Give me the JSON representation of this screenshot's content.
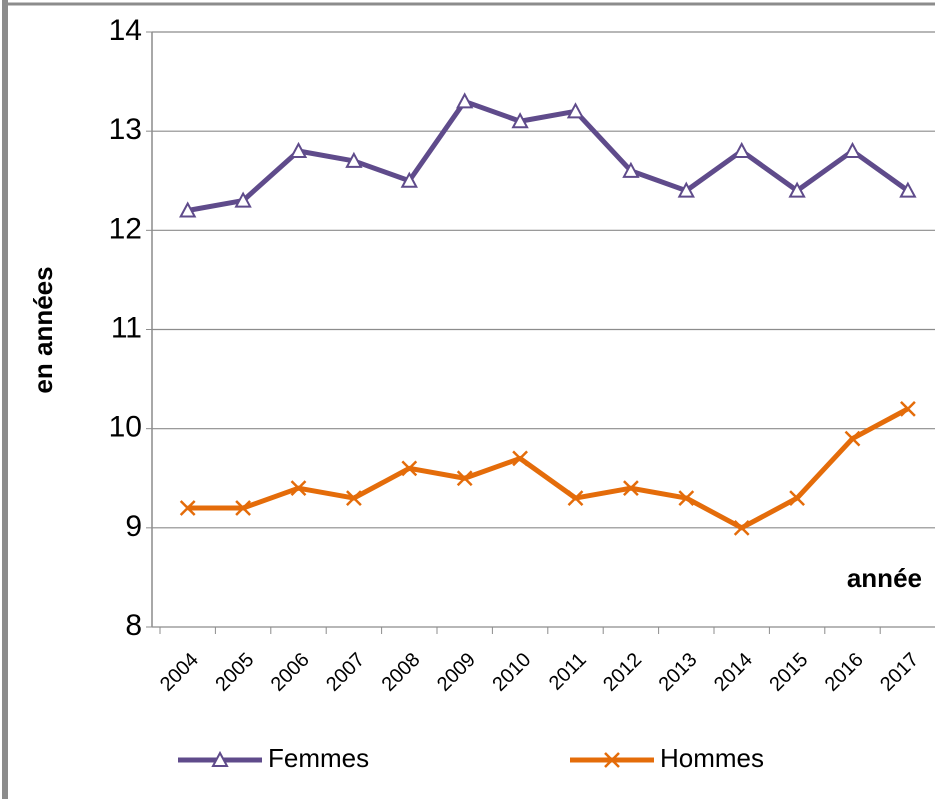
{
  "chart_data": {
    "type": "line",
    "y_label": "en années",
    "x_label": "année",
    "categories": [
      "2004",
      "2005",
      "2006",
      "2007",
      "2008",
      "2009",
      "2010",
      "2011",
      "2012",
      "2013",
      "2014",
      "2015",
      "2016",
      "2017"
    ],
    "series": [
      {
        "name": "Femmes",
        "color": "#5f4b8b",
        "marker": "triangle",
        "values": [
          12.2,
          12.3,
          12.8,
          12.7,
          12.5,
          13.3,
          13.1,
          13.2,
          12.6,
          12.4,
          12.8,
          12.4,
          12.8,
          12.4
        ]
      },
      {
        "name": "Hommes",
        "color": "#e46c0a",
        "marker": "x",
        "values": [
          9.2,
          9.2,
          9.4,
          9.3,
          9.6,
          9.5,
          9.7,
          9.3,
          9.4,
          9.3,
          9.0,
          9.3,
          9.9,
          10.2
        ]
      }
    ],
    "ylim": [
      8,
      14
    ],
    "yticks": [
      8,
      9,
      10,
      11,
      12,
      13,
      14
    ],
    "grid": true,
    "legend": "bottom"
  }
}
